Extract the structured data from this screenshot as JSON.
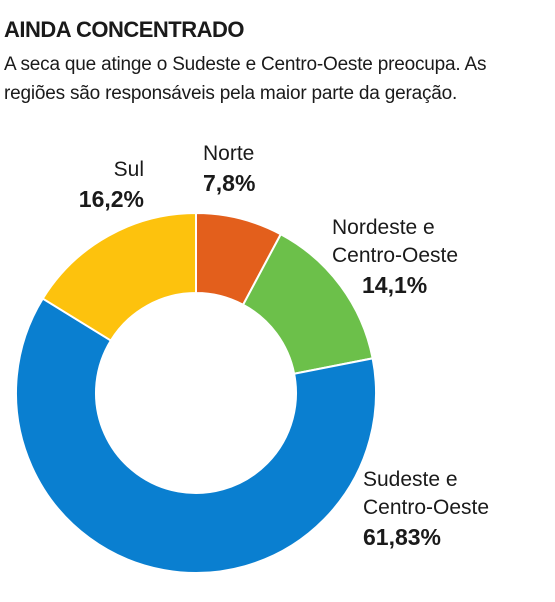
{
  "header": {
    "title": "AINDA CONCENTRADO",
    "subtitle": "A seca que atinge o Sudeste e Centro-Oeste preocupa. As regiões são responsáveis pela maior parte da geração."
  },
  "chart_data": {
    "type": "pie",
    "title": "AINDA CONCENTRADO",
    "donut": true,
    "slices": [
      {
        "name": "Norte",
        "value": 7.8,
        "label": "7,8%",
        "color": "#e35f1c"
      },
      {
        "name": "Nordeste e Centro-Oeste",
        "name_lines": [
          "Nordeste e",
          "Centro-Oeste"
        ],
        "value": 14.1,
        "label": "14,1%",
        "color": "#6cc04a"
      },
      {
        "name": "Sudeste e Centro-Oeste",
        "name_lines": [
          "Sudeste e",
          "Centro-Oeste"
        ],
        "value": 61.83,
        "label": "61,83%",
        "color": "#0a7fd0"
      },
      {
        "name": "Sul",
        "value": 16.2,
        "label": "16,2%",
        "color": "#fdc20d"
      }
    ]
  }
}
